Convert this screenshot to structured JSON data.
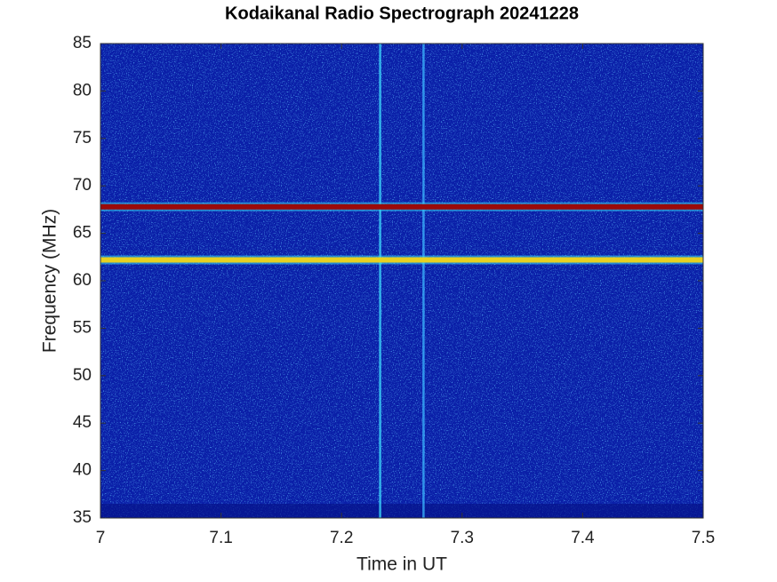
{
  "chart_data": {
    "type": "spectrogram",
    "title": "Kodaikanal Radio Spectrograph  20241228",
    "x_label": "Time in UT",
    "y_label": "Frequency (MHz)",
    "xlim": [
      7,
      7.5
    ],
    "xticks": [
      7,
      7.1,
      7.2,
      7.3,
      7.4,
      7.5
    ],
    "ylim": [
      35,
      85
    ],
    "yticks": [
      35,
      40,
      45,
      50,
      55,
      60,
      65,
      70,
      75,
      80,
      85
    ],
    "background_color": "#0a1fa8",
    "hlines": [
      {
        "y": 67.8,
        "color": "#9a0a0a"
      },
      {
        "y": 62.2,
        "color": "#e8d020"
      }
    ],
    "vlines": [
      {
        "x": 7.232,
        "color": "#3ee0ff"
      },
      {
        "x": 7.268,
        "color": "#3cb8ff"
      }
    ]
  }
}
